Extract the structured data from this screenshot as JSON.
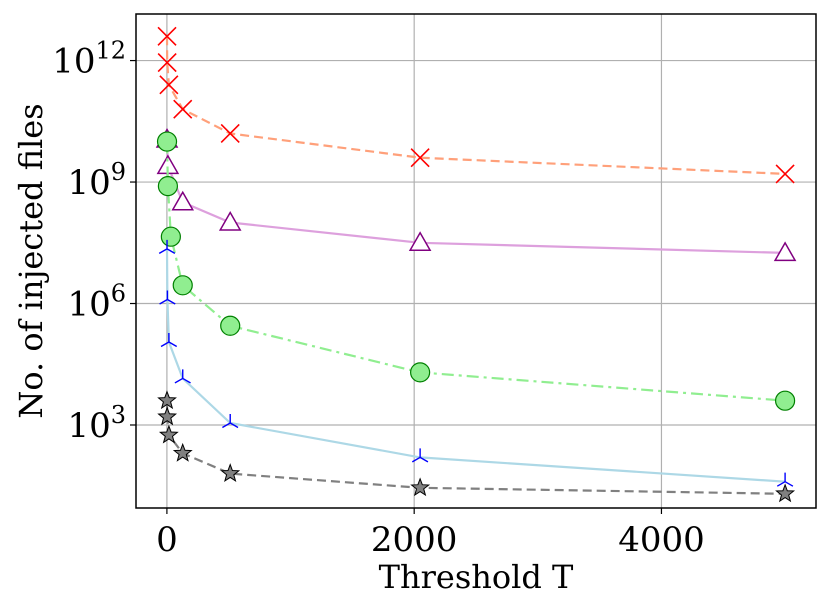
{
  "chart_data": {
    "type": "line",
    "title": "",
    "xlabel": "Threshold T",
    "ylabel": "No. of injected files",
    "xlim": [
      -250,
      5250
    ],
    "ylim_log10": [
      0.95,
      13.15
    ],
    "y_scale": "log",
    "grid": true,
    "legend": "none",
    "x_ticks": [
      {
        "value": 0,
        "label": "0"
      },
      {
        "value": 2000,
        "label": "2000"
      },
      {
        "value": 4000,
        "label": "4000"
      }
    ],
    "y_ticks": [
      {
        "log10": 3,
        "base": "10",
        "exp": "3"
      },
      {
        "log10": 6,
        "base": "10",
        "exp": "6"
      },
      {
        "log10": 9,
        "base": "10",
        "exp": "9"
      },
      {
        "log10": 12,
        "base": "10",
        "exp": "12"
      }
    ],
    "series": [
      {
        "name": "series-x",
        "color": "#ff0000",
        "line_color": "#ffa07a",
        "line_style": "dashed",
        "marker": "x",
        "x": [
          1,
          2,
          16,
          128,
          512,
          2048,
          5000
        ],
        "log10_y": [
          12.6,
          11.95,
          11.4,
          10.8,
          10.2,
          9.6,
          9.2
        ]
      },
      {
        "name": "series-triangle",
        "color": "#800080",
        "line_color": "#dda0dd",
        "line_style": "solid",
        "marker": "triangle",
        "x": [
          1,
          8,
          128,
          512,
          2048,
          5000
        ],
        "log10_y": [
          10.05,
          9.4,
          8.5,
          8.0,
          7.5,
          7.25
        ]
      },
      {
        "name": "series-circle",
        "color": "#008000",
        "fill": "#90ee90",
        "line_color": "#90ee90",
        "line_style": "dashdot",
        "marker": "circle",
        "x": [
          1,
          8,
          32,
          128,
          512,
          2048,
          5000
        ],
        "log10_y": [
          10.0,
          8.9,
          7.65,
          6.45,
          5.45,
          4.3,
          3.6
        ]
      },
      {
        "name": "series-tri-down",
        "color": "#0000ff",
        "line_color": "#add8e6",
        "line_style": "solid",
        "marker": "tri_down",
        "x": [
          1,
          4,
          16,
          128,
          512,
          2048,
          5000
        ],
        "log10_y": [
          7.35,
          6.1,
          5.05,
          4.15,
          3.05,
          2.2,
          1.6
        ]
      },
      {
        "name": "series-star",
        "color": "#505050",
        "fill": "#808080",
        "line_color": "#808080",
        "line_style": "dashed",
        "marker": "star",
        "x": [
          1,
          2,
          16,
          128,
          512,
          2048,
          5000
        ],
        "log10_y": [
          3.6,
          3.2,
          2.75,
          2.3,
          1.8,
          1.45,
          1.3
        ]
      }
    ]
  }
}
